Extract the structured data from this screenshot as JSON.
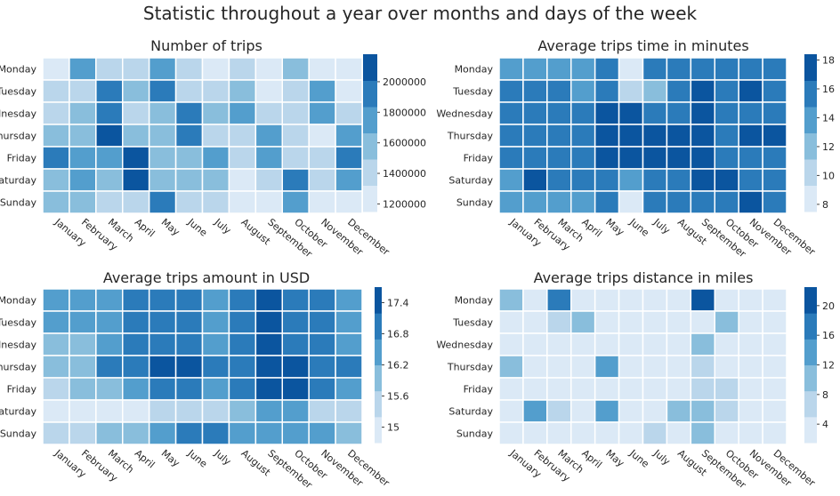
{
  "suptitle": "Statistic throughout a year over months and days of the week",
  "palette": [
    "#dbe9f6",
    "#bad6eb",
    "#89bedc",
    "#539ecd",
    "#2b7bba",
    "#0b559f"
  ],
  "chart_data": [
    {
      "type": "heatmap",
      "title": "Number of trips",
      "x": [
        "January",
        "February",
        "March",
        "April",
        "May",
        "June",
        "July",
        "August",
        "September",
        "October",
        "November",
        "December"
      ],
      "y": [
        "Monday",
        "Tuesday",
        "Wednesday",
        "Thursday",
        "Friday",
        "Saturday",
        "Sunday"
      ],
      "values": [
        [
          1200000,
          1750000,
          1400000,
          1450000,
          1750000,
          1400000,
          1300000,
          1400000,
          1300000,
          1650000,
          1250000,
          1200000
        ],
        [
          1400000,
          1450000,
          1900000,
          1500000,
          1900000,
          1450000,
          1450000,
          1550000,
          1300000,
          1400000,
          1750000,
          1250000
        ],
        [
          1400000,
          1550000,
          1900000,
          1450000,
          1600000,
          1900000,
          1500000,
          1750000,
          1400000,
          1450000,
          1750000,
          1400000
        ],
        [
          1600000,
          1600000,
          2150000,
          1550000,
          1600000,
          1900000,
          1450000,
          1400000,
          1750000,
          1450000,
          1250000,
          1750000
        ],
        [
          1950000,
          1800000,
          1750000,
          2150000,
          1600000,
          1550000,
          1750000,
          1400000,
          1750000,
          1450000,
          1400000,
          1950000
        ],
        [
          1600000,
          1750000,
          1600000,
          2150000,
          1600000,
          1550000,
          1500000,
          1300000,
          1400000,
          1950000,
          1400000,
          1750000
        ],
        [
          1600000,
          1600000,
          1400000,
          1450000,
          1950000,
          1400000,
          1400000,
          1250000,
          1300000,
          1750000,
          1250000,
          1250000
        ]
      ],
      "colorbar_ticks": [
        2000000,
        1800000,
        1600000,
        1400000,
        1200000
      ],
      "colorbar_range": [
        1150000,
        2180000
      ]
    },
    {
      "type": "heatmap",
      "title": "Average trips time in minutes",
      "x": [
        "January",
        "February",
        "March",
        "April",
        "May",
        "June",
        "July",
        "August",
        "September",
        "October",
        "November",
        "December"
      ],
      "y": [
        "Monday",
        "Tuesday",
        "Wednesday",
        "Thursday",
        "Friday",
        "Saturday",
        "Sunday"
      ],
      "values": [
        [
          14,
          13,
          13,
          13,
          15,
          9,
          15,
          15,
          16,
          15,
          15,
          15
        ],
        [
          15,
          15,
          15,
          14,
          15,
          10,
          12,
          15,
          17,
          16,
          17,
          15
        ],
        [
          15,
          15,
          15,
          15,
          17,
          17,
          15,
          16,
          17,
          16,
          16,
          15
        ],
        [
          15,
          15,
          15,
          15,
          17,
          17,
          17,
          17,
          17,
          16,
          17,
          17
        ],
        [
          15,
          15,
          15,
          15,
          17,
          17,
          17,
          17,
          17,
          16,
          16,
          16
        ],
        [
          14,
          17,
          15,
          15,
          15,
          14,
          15,
          15,
          17,
          17,
          15,
          15
        ],
        [
          14,
          13,
          14,
          13,
          15,
          9,
          15,
          15,
          15,
          15,
          17,
          15
        ]
      ],
      "colorbar_ticks": [
        18,
        16,
        14,
        12,
        10,
        8
      ],
      "colorbar_range": [
        7.5,
        18.4
      ]
    },
    {
      "type": "heatmap",
      "title": "Average trips amount in USD",
      "x": [
        "January",
        "February",
        "March",
        "April",
        "May",
        "June",
        "July",
        "August",
        "September",
        "October",
        "November",
        "December"
      ],
      "y": [
        "Monday",
        "Tuesday",
        "Wednesday",
        "Thursday",
        "Friday",
        "Saturday",
        "Sunday"
      ],
      "values": [
        [
          16.3,
          16.3,
          16.3,
          16.7,
          17.0,
          16.7,
          16.3,
          16.7,
          17.4,
          16.7,
          17.0,
          16.3
        ],
        [
          16.3,
          16.3,
          16.3,
          16.7,
          16.7,
          16.7,
          16.3,
          16.7,
          17.4,
          16.7,
          16.7,
          16.3
        ],
        [
          16.0,
          16.0,
          16.3,
          16.7,
          17.0,
          16.7,
          16.3,
          16.7,
          17.4,
          16.7,
          17.0,
          16.3
        ],
        [
          16.0,
          16.0,
          16.7,
          17.0,
          17.4,
          17.4,
          16.7,
          17.0,
          17.4,
          17.4,
          17.0,
          16.7
        ],
        [
          15.5,
          16.0,
          16.0,
          16.3,
          16.7,
          16.7,
          16.3,
          16.7,
          17.4,
          17.4,
          16.7,
          16.3
        ],
        [
          15.0,
          15.0,
          15.0,
          15.0,
          15.5,
          15.5,
          15.5,
          16.0,
          16.3,
          16.3,
          15.5,
          15.5
        ],
        [
          15.5,
          15.5,
          16.0,
          16.0,
          16.3,
          17.0,
          17.0,
          16.3,
          16.3,
          16.3,
          16.3,
          16.0
        ]
      ],
      "colorbar_ticks": [
        17.4,
        16.8,
        16.2,
        15.6,
        15.0
      ],
      "colorbar_range": [
        14.7,
        17.7
      ]
    },
    {
      "type": "heatmap",
      "title": "Average trips distance in miles",
      "x": [
        "January",
        "February",
        "March",
        "April",
        "May",
        "June",
        "July",
        "August",
        "September",
        "October",
        "November",
        "December"
      ],
      "y": [
        "Monday",
        "Tuesday",
        "Wednesday",
        "Thursday",
        "Friday",
        "Saturday",
        "Sunday"
      ],
      "values": [
        [
          10,
          3,
          18,
          3,
          3,
          3,
          3,
          3,
          22,
          3,
          3,
          3
        ],
        [
          3,
          3,
          7,
          10,
          3,
          3,
          3,
          3,
          3,
          10,
          3,
          3
        ],
        [
          3,
          3,
          3,
          3,
          3,
          3,
          3,
          3,
          10,
          3,
          3,
          3
        ],
        [
          10,
          3,
          3,
          3,
          14,
          3,
          3,
          3,
          7,
          3,
          3,
          3
        ],
        [
          3,
          3,
          3,
          3,
          3,
          3,
          3,
          3,
          7,
          7,
          3,
          3
        ],
        [
          3,
          14,
          7,
          3,
          14,
          3,
          3,
          10,
          10,
          7,
          3,
          3
        ],
        [
          3,
          3,
          3,
          3,
          3,
          3,
          7,
          3,
          10,
          3,
          3,
          3
        ]
      ],
      "colorbar_ticks": [
        20,
        16,
        12,
        8,
        4
      ],
      "colorbar_range": [
        1.5,
        22.5
      ]
    }
  ]
}
